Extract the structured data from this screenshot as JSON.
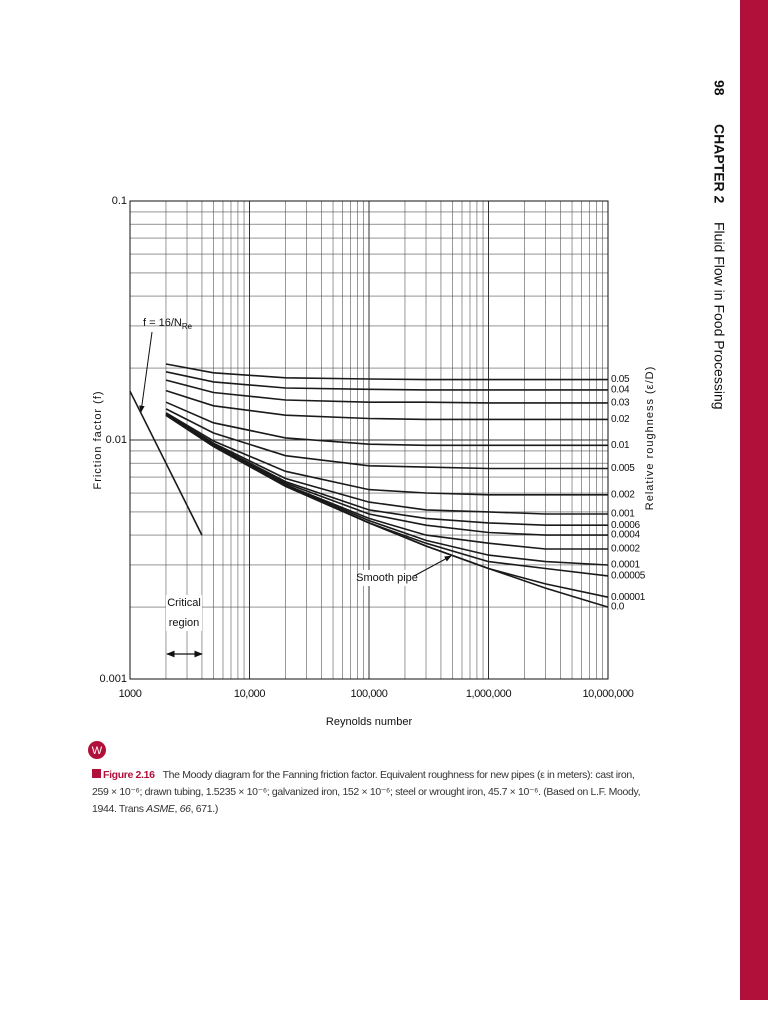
{
  "header": {
    "page": "98",
    "chapter": "CHAPTER 2",
    "title": "Fluid Flow in Food Processing"
  },
  "chart_data": {
    "type": "line",
    "xlabel": "Reynolds number",
    "ylabel": "Friction factor (f)",
    "right_label": "Relative roughness (ε/D)",
    "xscale": "log",
    "yscale": "log",
    "grid": true,
    "color": "#1a1a1a",
    "xlim": [
      1000,
      10000000
    ],
    "ylim": [
      0.001,
      0.1
    ],
    "xticks": [
      1000,
      {
        "value": 10000,
        "label": "10,000"
      },
      {
        "value": 100000,
        "label": "100,000"
      },
      {
        "value": 1000000,
        "label": "1,000,000"
      },
      {
        "value": 10000000,
        "label": "10,000,000"
      }
    ],
    "yticks": [
      0.001,
      0.01,
      0.1
    ],
    "x": [
      2000,
      5000,
      20000,
      100000,
      300000,
      1000000,
      3000000,
      10000000
    ],
    "series": [
      {
        "name": "0.05",
        "values": [
          0.0208,
          0.0191,
          0.0182,
          0.018,
          0.0179,
          0.0179,
          0.0179,
          0.0179
        ]
      },
      {
        "name": "0.04",
        "values": [
          0.0193,
          0.0175,
          0.0165,
          0.0163,
          0.0162,
          0.0162,
          0.0162,
          0.0162
        ]
      },
      {
        "name": "0.03",
        "values": [
          0.0178,
          0.0158,
          0.0147,
          0.0144,
          0.0144,
          0.0143,
          0.0143,
          0.0143
        ]
      },
      {
        "name": "0.02",
        "values": [
          0.0161,
          0.0139,
          0.0127,
          0.0123,
          0.0122,
          0.0122,
          0.0122,
          0.0122
        ]
      },
      {
        "name": "0.01",
        "values": [
          0.0144,
          0.0118,
          0.0102,
          0.0096,
          0.0095,
          0.0095,
          0.0095,
          0.0095
        ]
      },
      {
        "name": "0.005",
        "values": [
          0.0135,
          0.0107,
          0.0086,
          0.0078,
          0.0077,
          0.0076,
          0.0076,
          0.0076
        ]
      },
      {
        "name": "0.002",
        "values": [
          0.013,
          0.0099,
          0.0074,
          0.0062,
          0.006,
          0.0059,
          0.0059,
          0.0059
        ]
      },
      {
        "name": "0.001",
        "values": [
          0.0129,
          0.0097,
          0.0069,
          0.0055,
          0.0051,
          0.005,
          0.0049,
          0.0049
        ]
      },
      {
        "name": "0.0006",
        "values": [
          0.0128,
          0.0096,
          0.0067,
          0.0051,
          0.0047,
          0.0045,
          0.0044,
          0.0044
        ]
      },
      {
        "name": "0.0004",
        "values": [
          0.0128,
          0.0095,
          0.0066,
          0.0049,
          0.0044,
          0.0041,
          0.004,
          0.004
        ]
      },
      {
        "name": "0.0002",
        "values": [
          0.0128,
          0.0095,
          0.0065,
          0.0047,
          0.004,
          0.0037,
          0.0035,
          0.0035
        ]
      },
      {
        "name": "0.0001",
        "values": [
          0.0127,
          0.0095,
          0.0065,
          0.0046,
          0.0038,
          0.0033,
          0.0031,
          0.003
        ]
      },
      {
        "name": "0.00005",
        "values": [
          0.0127,
          0.0094,
          0.0065,
          0.0045,
          0.0037,
          0.0031,
          0.0029,
          0.0027
        ]
      },
      {
        "name": "0.00001",
        "values": [
          0.0127,
          0.0094,
          0.0064,
          0.0045,
          0.0036,
          0.0029,
          0.0025,
          0.0022
        ]
      },
      {
        "name": "0.0",
        "values": [
          0.0127,
          0.0094,
          0.0064,
          0.0045,
          0.0036,
          0.0029,
          0.0024,
          0.002
        ]
      }
    ],
    "laminar": {
      "x": [
        1000,
        4000
      ],
      "values": [
        0.016,
        0.004
      ]
    },
    "laminar_label": {
      "text": "f = 16/N",
      "sub": "Re"
    },
    "smooth_label": "Smooth pipe",
    "critical_label": [
      "Critical",
      "region"
    ]
  },
  "caption": {
    "icon": "W",
    "label": "Figure 2.16",
    "runs": [
      "The Moody diagram for the Fanning friction factor. Equivalent roughness for new pipes (ε in meters): cast iron, 259 × 10⁻⁶; drawn tubing, 1.5235 × 10⁻⁶; galvanized iron, 152 × 10⁻⁶; steel or wrought iron, 45.7 × 10⁻⁶. (Based on L.F. Moody, 1944. Trans ",
      "ASME",
      ", ",
      "66",
      ", 671.)"
    ]
  }
}
